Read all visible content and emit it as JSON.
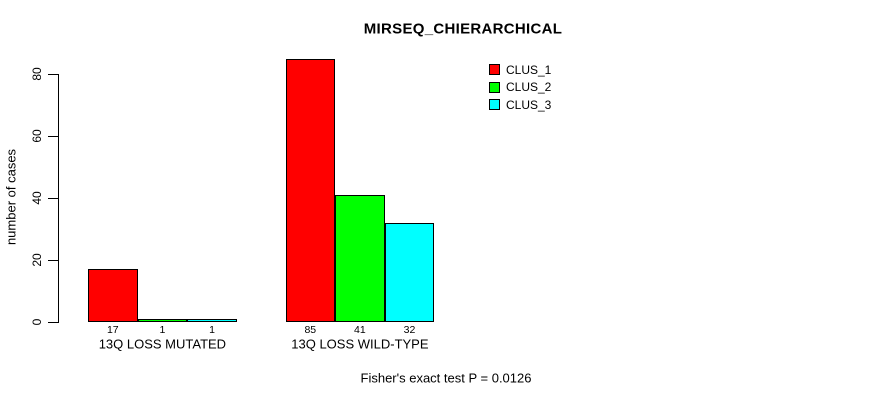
{
  "chart_data": {
    "type": "bar",
    "title": "MIRSEQ_CHIERARCHICAL",
    "ylabel": "number of cases",
    "xlabel": "",
    "categories": [
      "13Q LOSS MUTATED",
      "13Q LOSS WILD-TYPE"
    ],
    "series": [
      {
        "name": "CLUS_1",
        "color": "#ff0000",
        "values": [
          17,
          85
        ]
      },
      {
        "name": "CLUS_2",
        "color": "#00ff00",
        "values": [
          1,
          41
        ]
      },
      {
        "name": "CLUS_3",
        "color": "#00ffff",
        "values": [
          1,
          32
        ]
      }
    ],
    "bar_value_labels": [
      [
        "17",
        "1",
        "1"
      ],
      [
        "85",
        "41",
        "32"
      ]
    ],
    "yticks": [
      0,
      20,
      40,
      60,
      80
    ],
    "ylim": [
      0,
      85
    ],
    "grid": false,
    "show_bar_values": true,
    "legend_position": "top-right",
    "annotation": "Fisher's exact test P = 0.0126",
    "axis_color": "#000000",
    "background_color": "#ffffff"
  }
}
